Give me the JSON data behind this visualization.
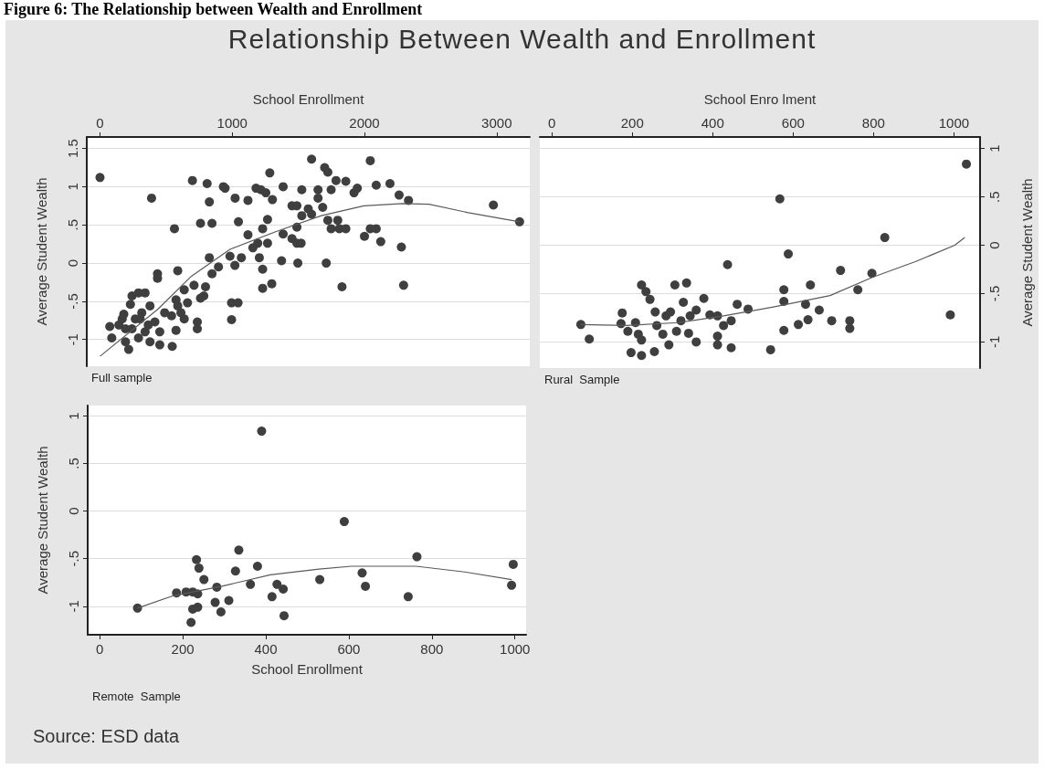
{
  "chart_data": [
    {
      "type": "scatter",
      "title": "Relationship Between Wealth and Enrollment",
      "subtitle": "Full sample",
      "xlabel": "School Enrollment",
      "ylabel": "Average Student Wealth",
      "annotations": [
        "Figure 6: The Relationship between Wealth and Enrollment"
      ],
      "xlim": [
        -100,
        3250
      ],
      "ylim": [
        -1.35,
        1.65
      ],
      "xticks": [
        0,
        1000,
        2000,
        3000
      ],
      "yticks": [
        {
          "value": -1,
          "label": "-1"
        },
        {
          "value": -0.5,
          "label": "-.5"
        },
        0,
        {
          "value": 0.5,
          "label": ".5"
        },
        1,
        1.5
      ],
      "grid": "y",
      "marker": "circle",
      "series": [
        {
          "color": "#3f3f3f",
          "x": [
            0,
            390,
            74,
            89,
            217,
            242,
            291,
            341,
            230,
            168,
            193,
            267,
            316,
            378,
            415,
            452,
            341,
            291,
            193,
            378,
            452,
            242,
            365,
            304,
            143,
            180,
            435,
            435,
            546,
            563,
            588,
            575,
            489,
            541,
            575,
            588,
            612,
            637,
            662,
            637,
            711,
            736,
            736,
            785,
            798,
            760,
            699,
            810,
            827,
            760,
            847,
            827,
            847,
            896,
            933,
            946,
            1022,
            1047,
            983,
            1020,
            1069,
            995,
            1044,
            995,
            1119,
            1119,
            1156,
            1193,
            1205,
            1230,
            1230,
            1267,
            1230,
            1267,
            1180,
            1217,
            1254,
            1284,
            1304,
            1299,
            1385,
            1373,
            1385,
            1452,
            1489,
            1489,
            1452,
            1489,
            1521,
            1526,
            1496,
            1526,
            1575,
            1600,
            1600,
            1649,
            1649,
            1684,
            1699,
            1723,
            1748,
            1711,
            1723,
            1748,
            1798,
            1785,
            1859,
            1810,
            1859,
            1830,
            1921,
            1946,
            2000,
            2044,
            2089,
            2044,
            2089,
            2123,
            2193,
            2262,
            2279,
            2296,
            2333,
            2975,
            3173
          ],
          "values": [
            1.12,
            0.85,
            -0.83,
            -0.98,
            -1.13,
            -0.43,
            -0.39,
            -0.39,
            -0.54,
            -0.73,
            -0.86,
            -0.73,
            -0.65,
            -0.56,
            -0.77,
            -0.9,
            -0.9,
            -0.98,
            -1.03,
            -1.03,
            -1.07,
            -0.86,
            -0.81,
            -0.73,
            -0.81,
            -0.67,
            -0.14,
            -0.2,
            -1.09,
            0.45,
            -0.1,
            -0.48,
            -0.65,
            -0.69,
            -0.88,
            -0.56,
            -0.65,
            -0.73,
            -0.52,
            -0.35,
            -0.29,
            -0.77,
            -0.86,
            -0.43,
            -0.31,
            -0.46,
            1.08,
            1.04,
            0.8,
            0.52,
            0.52,
            0.07,
            -0.14,
            -0.05,
            1.0,
            0.98,
            0.85,
            0.54,
            0.09,
            -0.03,
            0.07,
            -0.52,
            -0.52,
            -0.74,
            0.82,
            0.37,
            0.2,
            0.26,
            0.07,
            -0.08,
            -0.33,
            0.26,
            0.45,
            0.57,
            0.98,
            0.96,
            0.92,
            1.18,
            0.83,
            -0.27,
            1.0,
            0.03,
            0.38,
            0.75,
            0.75,
            0.47,
            0.32,
            0.26,
            0.26,
            0.96,
            0.0,
            0.62,
            0.71,
            1.36,
            0.64,
            0.96,
            0.85,
            0.73,
            1.25,
            1.19,
            0.96,
            0.0,
            0.56,
            0.45,
            0.56,
            1.08,
            1.07,
            0.45,
            0.45,
            -0.31,
            0.92,
            0.98,
            0.35,
            0.45,
            0.45,
            1.34,
            1.02,
            0.28,
            1.04,
            0.89,
            0.21,
            -0.29,
            0.82,
            0.76,
            0.54
          ]
        },
        {
          "type": "line",
          "color": "#5a5a5a",
          "marker": "none",
          "x": [
            0,
            440,
            686,
            983,
            1328,
            1674,
            1995,
            2291,
            2489,
            2785,
            3173
          ],
          "values": [
            -1.22,
            -0.6,
            -0.18,
            0.18,
            0.41,
            0.62,
            0.75,
            0.78,
            0.77,
            0.66,
            0.54
          ]
        }
      ]
    },
    {
      "type": "scatter",
      "subtitle": "Rural  Sample",
      "xlabel": "School Enro lment",
      "y2label": "Average Student Wealth",
      "xlim": [
        -30,
        1065
      ],
      "y2lim": [
        -1.27,
        1.12
      ],
      "xticks": [
        0,
        200,
        400,
        600,
        800,
        1000
      ],
      "y2ticks": [
        {
          "value": -1,
          "label": "-1"
        },
        {
          "value": -0.5,
          "label": "-.5"
        },
        0,
        {
          "value": 0.5,
          "label": ".5"
        },
        1
      ],
      "grid": "y",
      "marker": "circle",
      "series": [
        {
          "axis": "y2",
          "color": "#3f3f3f",
          "x": [
            72,
            93,
            175,
            172,
            189,
            197,
            223,
            223,
            234,
            244,
            255,
            215,
            223,
            208,
            257,
            261,
            276,
            291,
            284,
            295,
            306,
            310,
            321,
            327,
            335,
            340,
            344,
            359,
            359,
            378,
            393,
            412,
            412,
            412,
            427,
            437,
            446,
            446,
            461,
            488,
            544,
            567,
            577,
            577,
            577,
            588,
            613,
            631,
            637,
            643,
            665,
            696,
            718,
            741,
            741,
            761,
            796,
            828,
            991,
            1031
          ],
          "values": [
            -0.82,
            -0.97,
            -0.7,
            -0.81,
            -0.89,
            -1.11,
            -1.14,
            -0.41,
            -0.48,
            -0.56,
            -1.1,
            -0.92,
            -0.98,
            -0.8,
            -0.69,
            -0.83,
            -0.92,
            -1.03,
            -0.73,
            -0.69,
            -0.41,
            -0.89,
            -0.78,
            -0.59,
            -0.39,
            -0.91,
            -0.73,
            -1.0,
            -0.67,
            -0.55,
            -0.72,
            -0.73,
            -0.94,
            -1.03,
            -0.83,
            -0.2,
            -1.06,
            -0.78,
            -0.61,
            -0.66,
            -1.08,
            0.48,
            -0.46,
            -0.58,
            -0.88,
            -0.09,
            -0.82,
            -0.61,
            -0.77,
            -0.41,
            -0.67,
            -0.78,
            -0.26,
            -0.78,
            -0.86,
            -0.46,
            -0.29,
            0.08,
            -0.72,
            0.84
          ]
        },
        {
          "type": "line",
          "axis": "y2",
          "color": "#5a5a5a",
          "marker": "none",
          "x": [
            72,
            185,
            314,
            427,
            548,
            692,
            798,
            904,
            1002,
            1027
          ],
          "values": [
            -0.82,
            -0.83,
            -0.8,
            -0.73,
            -0.64,
            -0.52,
            -0.33,
            -0.17,
            0.0,
            0.08
          ]
        }
      ]
    },
    {
      "type": "scatter",
      "subtitle": "Remote  Sample",
      "xlabel": "School Enrollment",
      "ylabel": "Average Student Wealth",
      "annotations": [
        "Source: ESD data"
      ],
      "xlim": [
        -29,
        1027
      ],
      "ylim": [
        -1.3,
        1.11
      ],
      "xticks": [
        0,
        200,
        400,
        600,
        800,
        1000
      ],
      "yticks": [
        {
          "value": -1,
          "label": "-1"
        },
        {
          "value": -0.5,
          "label": "-.5"
        },
        0,
        {
          "value": 0.5,
          "label": ".5"
        },
        1
      ],
      "grid": "y",
      "marker": "circle",
      "series": [
        {
          "color": "#3f3f3f",
          "x": [
            91,
            177,
            185,
            208,
            224,
            236,
            220,
            224,
            236,
            233,
            239,
            251,
            278,
            282,
            292,
            311,
            327,
            335,
            363,
            380,
            390,
            415,
            427,
            442,
            444,
            530,
            589,
            632,
            640,
            743,
            764,
            992,
            996
          ],
          "values": [
            -1.02,
            null,
            -0.86,
            -0.85,
            -0.85,
            -0.87,
            -1.17,
            -1.03,
            -1.01,
            -0.51,
            -0.6,
            -0.72,
            -0.96,
            -0.8,
            -1.06,
            -0.94,
            -0.63,
            -0.41,
            -0.77,
            -0.58,
            0.84,
            -0.9,
            -0.77,
            -0.82,
            -1.1,
            -0.72,
            -0.11,
            -0.65,
            -0.79,
            -0.9,
            -0.48,
            -0.78,
            -0.56
          ]
        },
        {
          "type": "line",
          "color": "#5a5a5a",
          "marker": "none",
          "x": [
            91,
            177,
            294,
            411,
            528,
            606,
            762,
            879,
            992
          ],
          "values": [
            -1.02,
            -0.89,
            -0.79,
            -0.67,
            -0.61,
            -0.58,
            -0.58,
            -0.64,
            -0.72
          ]
        }
      ]
    }
  ]
}
